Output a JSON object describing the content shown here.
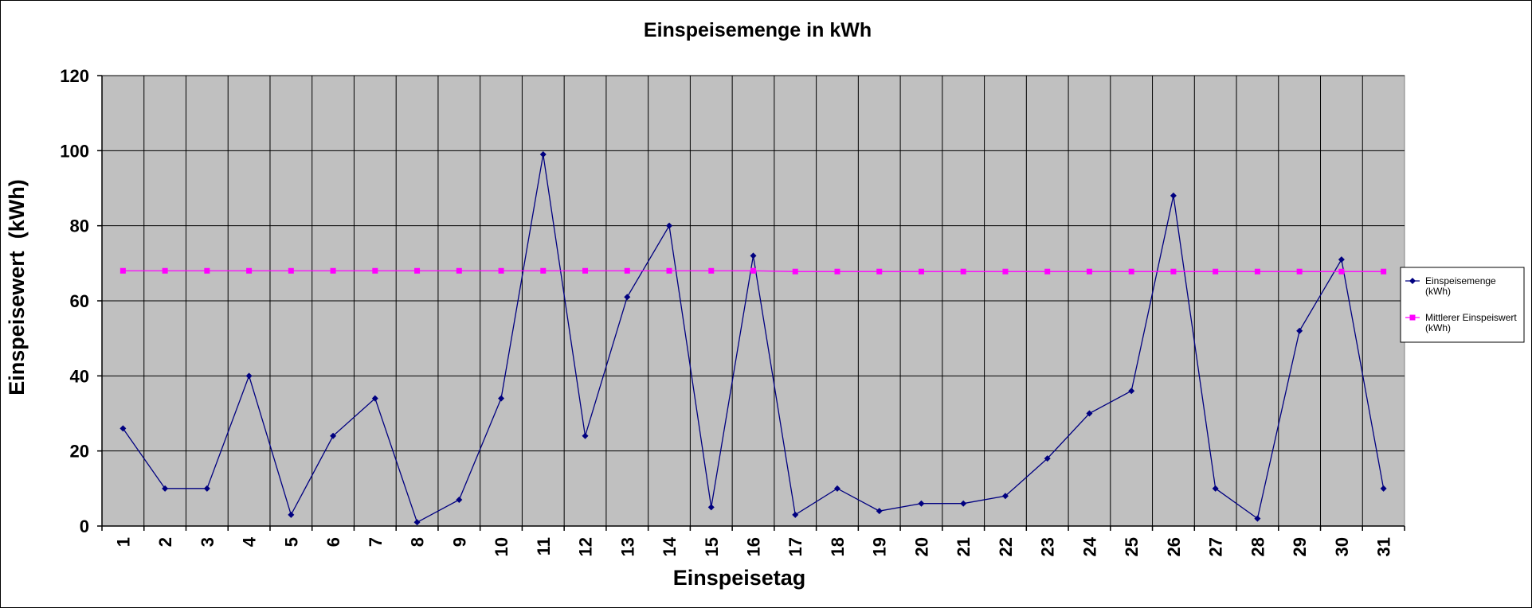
{
  "chart_data": {
    "type": "line",
    "title": "Einspeisemenge in kWh",
    "xlabel": "Einspeisetag",
    "ylabel": "Einspeisewert  (kWh)",
    "ylim": [
      0,
      120
    ],
    "yticks": [
      0,
      20,
      40,
      60,
      80,
      100,
      120
    ],
    "grid": true,
    "legend_position": "right",
    "plot_background": "#c0c0c0",
    "categories": [
      "1",
      "2",
      "3",
      "4",
      "5",
      "6",
      "7",
      "8",
      "9",
      "10",
      "11",
      "12",
      "13",
      "14",
      "15",
      "16",
      "17",
      "18",
      "19",
      "20",
      "21",
      "22",
      "23",
      "24",
      "25",
      "26",
      "27",
      "28",
      "29",
      "30",
      "31"
    ],
    "series": [
      {
        "name": "Einspeisemenge (kWh)",
        "legend_lines": [
          "Einspeisemenge",
          "(kWh)"
        ],
        "color": "#000080",
        "marker": "diamond",
        "values": [
          26,
          10,
          10,
          40,
          3,
          24,
          34,
          1,
          7,
          34,
          99,
          24,
          61,
          80,
          5,
          72,
          3,
          10,
          4,
          6,
          6,
          8,
          18,
          30,
          36,
          88,
          10,
          2,
          52,
          71,
          10
        ]
      },
      {
        "name": "Mittlerer Einspeiswert (kWh)",
        "legend_lines": [
          "Mittlerer Einspeiswert",
          "(kWh)"
        ],
        "color": "#ff00ff",
        "marker": "square",
        "values": [
          68,
          68,
          68,
          68,
          68,
          68,
          68,
          68,
          68,
          68,
          68,
          68,
          68,
          68,
          68,
          68,
          67.8,
          67.8,
          67.8,
          67.8,
          67.8,
          67.8,
          67.8,
          67.8,
          67.8,
          67.8,
          67.8,
          67.8,
          67.8,
          67.8,
          67.8
        ]
      }
    ]
  }
}
